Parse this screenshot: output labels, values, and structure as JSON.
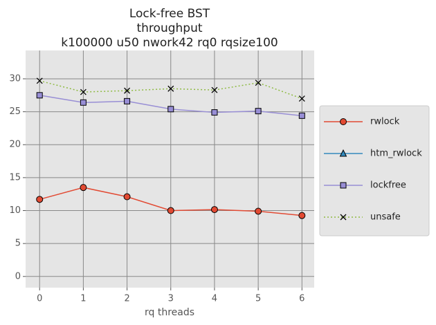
{
  "chart_data": {
    "type": "line",
    "title": [
      "Lock-free BST",
      "throughput",
      "k100000 u50 nwork42 rq0 rqsize100"
    ],
    "x_label": "rq threads",
    "x": [
      0,
      1,
      2,
      3,
      4,
      5,
      6
    ],
    "series": [
      {
        "name": "rwlock",
        "color": "#E24A33",
        "marker": "circle",
        "linestyle": "solid",
        "values": [
          11.7,
          13.5,
          12.1,
          10.0,
          10.15,
          9.9,
          9.25
        ]
      },
      {
        "name": "htm_rwlock",
        "color": "#348ABD",
        "marker": "triangle",
        "linestyle": "solid",
        "values": [
          null,
          null,
          null,
          null,
          null,
          null,
          null
        ]
      },
      {
        "name": "lockfree",
        "color": "#988ED5",
        "marker": "square",
        "linestyle": "solid",
        "values": [
          27.5,
          26.4,
          26.6,
          25.4,
          24.9,
          25.1,
          24.4
        ]
      },
      {
        "name": "unsafe",
        "color": "#8EBA42",
        "marker": "x",
        "linestyle": "dotted",
        "values": [
          29.7,
          28.0,
          28.2,
          28.5,
          28.3,
          29.4,
          27.0
        ]
      }
    ],
    "xlim": [
      -0.32,
      6.28
    ],
    "xticks": [
      0,
      1,
      2,
      3,
      4,
      5,
      6
    ],
    "ylim": [
      -1.7,
      34.3
    ],
    "yticks": [
      0,
      5,
      10,
      15,
      20,
      25,
      30
    ],
    "grid": true,
    "legend": "outside right"
  }
}
